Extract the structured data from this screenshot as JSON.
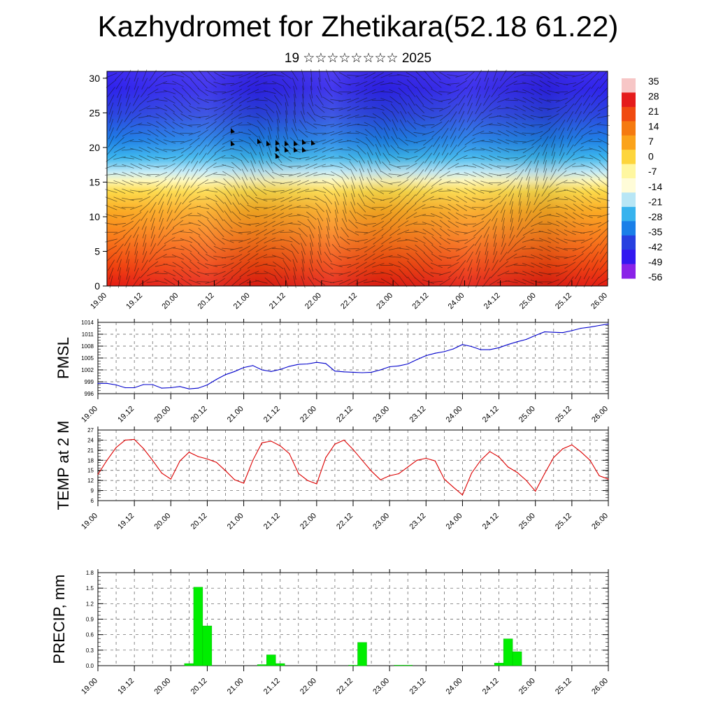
{
  "title": "Kazhydromet for Zhetikara(52.18 61.22)",
  "subtitle": "19 ☆☆☆☆☆☆☆☆ 2025",
  "time_tick_labels": [
    "19.00",
    "19.12",
    "20.00",
    "20.12",
    "21.00",
    "21.12",
    "22.00",
    "22.12",
    "23.00",
    "23.12",
    "24.00",
    "24.12",
    "25.00",
    "25.12",
    "26.00"
  ],
  "chart_data": [
    {
      "type": "heatmap",
      "title": "",
      "xlabel": "",
      "ylabel": "",
      "ylim": [
        0,
        31
      ],
      "y_ticks": [
        0,
        5,
        10,
        15,
        20,
        25,
        30
      ],
      "colorbar_labels": [
        "35",
        "28",
        "21",
        "14",
        "7",
        "0",
        "-7",
        "-14",
        "-21",
        "-28",
        "-35",
        "-42",
        "-49",
        "-56"
      ],
      "colorbar_colors": [
        "#f7c6c6",
        "#e51b1b",
        "#f04a10",
        "#f57a10",
        "#fba31a",
        "#fdd53c",
        "#fff7a0",
        "#fffcd8",
        "#b8e6f5",
        "#37b3ee",
        "#1a7fe8",
        "#2740e0",
        "#3318f0",
        "#8a22e8"
      ],
      "description_rows": [
        {
          "level": 0,
          "profile": "warm"
        },
        {
          "level": 15,
          "profile": "transition"
        },
        {
          "level": 30,
          "profile": "cold"
        }
      ]
    },
    {
      "type": "line",
      "ylabel": "PMSL",
      "ylim": [
        996,
        1014
      ],
      "y_ticks": [
        996,
        999,
        1002,
        1005,
        1008,
        1011,
        1014
      ],
      "line_color": "#0000cc",
      "x": [
        0,
        3,
        6,
        9,
        12,
        15,
        18,
        21,
        24,
        27,
        30,
        33,
        36,
        39,
        42,
        45,
        48,
        51,
        54,
        57,
        60,
        63,
        66,
        69,
        72,
        75,
        78,
        81,
        84,
        87,
        90,
        93,
        96,
        99,
        102,
        105,
        108,
        111,
        114,
        117,
        120,
        123,
        126,
        129,
        132,
        135,
        138,
        141,
        144,
        147,
        150,
        153,
        156,
        159,
        162,
        165,
        168
      ],
      "values": [
        998.6,
        998.6,
        998.2,
        997.5,
        997.5,
        998.3,
        998.3,
        997.4,
        997.5,
        997.8,
        997.2,
        997.4,
        998.2,
        999.6,
        1000.8,
        1001.6,
        1002.6,
        1003.1,
        1002.0,
        1001.6,
        1002.1,
        1002.9,
        1003.4,
        1003.5,
        1003.9,
        1003.6,
        1001.7,
        1001.5,
        1001.4,
        1001.3,
        1001.4,
        1002.0,
        1002.8,
        1003.0,
        1003.5,
        1004.6,
        1005.6,
        1006.2,
        1006.6,
        1007.3,
        1008.4,
        1007.9,
        1007.1,
        1007.1,
        1007.6,
        1008.4,
        1009.1,
        1009.7,
        1010.7,
        1011.6,
        1011.5,
        1011.4,
        1011.9,
        1012.5,
        1012.8,
        1013.2,
        1013.6
      ]
    },
    {
      "type": "line",
      "ylabel": "TEMP at 2 M",
      "ylim": [
        6,
        27
      ],
      "y_ticks": [
        6,
        9,
        12,
        15,
        18,
        21,
        24,
        27
      ],
      "line_color": "#dd0000",
      "x": [
        0,
        3,
        6,
        9,
        12,
        15,
        18,
        21,
        24,
        27,
        30,
        33,
        36,
        39,
        42,
        45,
        48,
        51,
        54,
        57,
        60,
        63,
        66,
        69,
        72,
        75,
        78,
        81,
        84,
        87,
        90,
        93,
        96,
        99,
        102,
        105,
        108,
        111,
        114,
        117,
        120,
        123,
        126,
        129,
        132,
        135,
        138,
        141,
        144,
        147,
        150,
        153,
        156,
        159,
        162,
        165,
        168
      ],
      "values": [
        13.8,
        18.0,
        21.8,
        24.0,
        24.2,
        21.5,
        18.0,
        14.2,
        12.4,
        17.8,
        20.4,
        19.1,
        18.4,
        17.4,
        14.9,
        12.2,
        11.2,
        18.0,
        23.2,
        23.7,
        22.3,
        20.0,
        14.1,
        12.0,
        11.0,
        18.8,
        22.8,
        24.0,
        21.2,
        18.0,
        14.8,
        12.2,
        13.4,
        14.0,
        16.0,
        18.0,
        18.6,
        17.8,
        12.4,
        10.0,
        7.7,
        14.2,
        18.0,
        20.6,
        19.0,
        16.0,
        14.4,
        12.0,
        8.8,
        14.0,
        18.8,
        21.4,
        22.6,
        20.5,
        18.0,
        13.4,
        12.4
      ]
    },
    {
      "type": "bar",
      "ylabel": "PRECIP, mm",
      "ylim": [
        0,
        1.8
      ],
      "y_ticks": [
        "0.0",
        "0.3",
        "0.6",
        "0.9",
        "1.2",
        "1.5",
        "1.8"
      ],
      "bar_color": "#00ee00",
      "bar_width_hours": 3,
      "x": [
        30,
        33,
        36,
        54,
        57,
        60,
        84,
        87,
        99,
        102,
        132,
        135,
        138
      ],
      "values": [
        0.04,
        1.52,
        0.77,
        0.02,
        0.21,
        0.04,
        0.01,
        0.45,
        0.01,
        0.01,
        0.05,
        0.52,
        0.27
      ]
    }
  ]
}
